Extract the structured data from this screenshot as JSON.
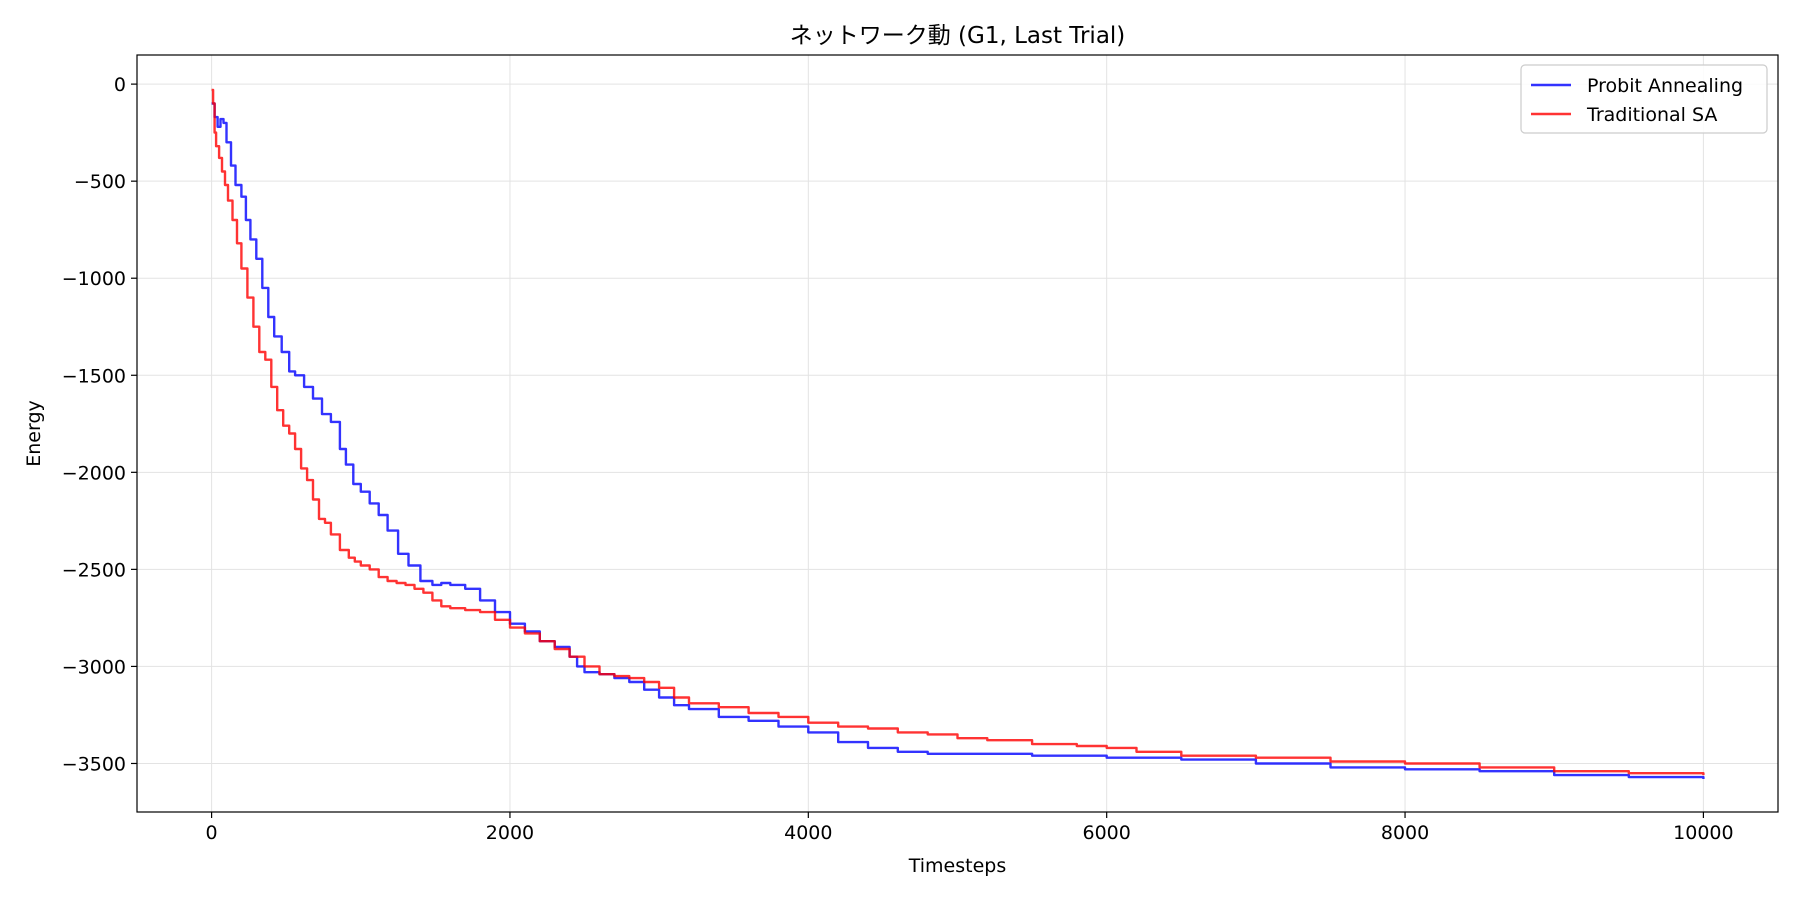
{
  "chart_data": {
    "type": "line",
    "title": "ネットワーク動 (G1, Last Trial)",
    "xlabel": "Timesteps",
    "ylabel": "Energy",
    "xlim": [
      -500,
      10500
    ],
    "ylim": [
      -3750,
      150
    ],
    "xticks": [
      0,
      2000,
      4000,
      6000,
      8000,
      10000
    ],
    "yticks": [
      0,
      -500,
      -1000,
      -1500,
      -2000,
      -2500,
      -3000,
      -3500
    ],
    "grid": true,
    "legend_position": "top-right",
    "series": [
      {
        "name": "Probit Annealing",
        "color": "#0000ff",
        "x": [
          0,
          20,
          40,
          60,
          80,
          100,
          130,
          160,
          200,
          230,
          260,
          300,
          340,
          380,
          420,
          470,
          520,
          560,
          620,
          680,
          740,
          800,
          860,
          900,
          950,
          1000,
          1060,
          1120,
          1180,
          1250,
          1320,
          1400,
          1480,
          1540,
          1600,
          1700,
          1800,
          1900,
          2000,
          2100,
          2200,
          2300,
          2400,
          2450,
          2500,
          2600,
          2700,
          2800,
          2900,
          3000,
          3100,
          3200,
          3400,
          3600,
          3800,
          4000,
          4200,
          4400,
          4600,
          4800,
          5000,
          5500,
          6000,
          6500,
          7000,
          7500,
          8000,
          8500,
          9000,
          9500,
          10000
        ],
        "y": [
          -100,
          -170,
          -220,
          -180,
          -200,
          -300,
          -420,
          -520,
          -580,
          -700,
          -800,
          -900,
          -1050,
          -1200,
          -1300,
          -1380,
          -1480,
          -1500,
          -1560,
          -1620,
          -1700,
          -1740,
          -1880,
          -1960,
          -2060,
          -2100,
          -2160,
          -2220,
          -2300,
          -2420,
          -2480,
          -2560,
          -2580,
          -2570,
          -2580,
          -2600,
          -2660,
          -2720,
          -2780,
          -2820,
          -2870,
          -2900,
          -2950,
          -3000,
          -3030,
          -3040,
          -3060,
          -3080,
          -3120,
          -3160,
          -3200,
          -3220,
          -3260,
          -3280,
          -3310,
          -3340,
          -3390,
          -3420,
          -3440,
          -3450,
          -3450,
          -3460,
          -3470,
          -3480,
          -3500,
          -3520,
          -3530,
          -3540,
          -3560,
          -3570,
          -3580
        ]
      },
      {
        "name": "Traditional SA",
        "color": "#ff0000",
        "x": [
          0,
          10,
          20,
          30,
          50,
          70,
          90,
          110,
          140,
          170,
          200,
          240,
          280,
          320,
          360,
          400,
          440,
          480,
          520,
          560,
          600,
          640,
          680,
          720,
          760,
          800,
          860,
          920,
          960,
          1000,
          1060,
          1120,
          1180,
          1240,
          1300,
          1360,
          1420,
          1480,
          1540,
          1600,
          1700,
          1800,
          1900,
          2000,
          2100,
          2200,
          2300,
          2400,
          2500,
          2600,
          2700,
          2800,
          2900,
          3000,
          3100,
          3200,
          3400,
          3600,
          3800,
          4000,
          4200,
          4400,
          4600,
          4800,
          5000,
          5200,
          5500,
          5800,
          6000,
          6200,
          6500,
          7000,
          7500,
          8000,
          8500,
          9000,
          9500,
          10000
        ],
        "y": [
          -30,
          -100,
          -250,
          -320,
          -380,
          -450,
          -520,
          -600,
          -700,
          -820,
          -950,
          -1100,
          -1250,
          -1380,
          -1420,
          -1560,
          -1680,
          -1760,
          -1800,
          -1880,
          -1980,
          -2040,
          -2140,
          -2240,
          -2260,
          -2320,
          -2400,
          -2440,
          -2460,
          -2480,
          -2500,
          -2540,
          -2560,
          -2570,
          -2580,
          -2600,
          -2620,
          -2660,
          -2690,
          -2700,
          -2710,
          -2720,
          -2760,
          -2800,
          -2830,
          -2870,
          -2910,
          -2950,
          -3000,
          -3040,
          -3050,
          -3060,
          -3080,
          -3110,
          -3160,
          -3190,
          -3210,
          -3240,
          -3260,
          -3290,
          -3310,
          -3320,
          -3340,
          -3350,
          -3370,
          -3380,
          -3400,
          -3410,
          -3420,
          -3440,
          -3460,
          -3470,
          -3490,
          -3500,
          -3520,
          -3540,
          -3550,
          -3560
        ]
      }
    ]
  }
}
